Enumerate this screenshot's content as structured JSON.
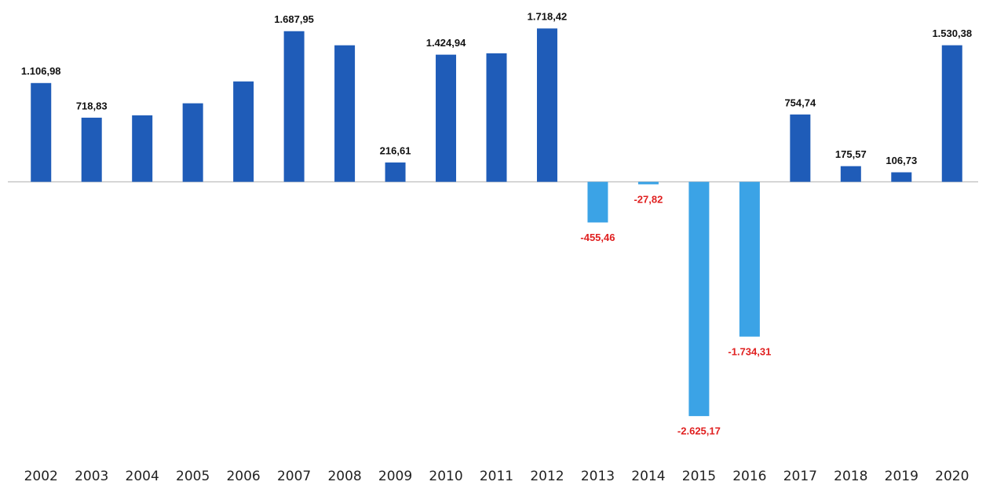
{
  "chart_data": {
    "type": "bar",
    "categories": [
      "2002",
      "2003",
      "2004",
      "2005",
      "2006",
      "2007",
      "2008",
      "2009",
      "2010",
      "2011",
      "2012",
      "2013",
      "2014",
      "2015",
      "2016",
      "2017",
      "2018",
      "2019",
      "2020"
    ],
    "values": [
      1106.98,
      718.83,
      745,
      880,
      1125,
      1687.95,
      1530,
      216.61,
      1424.94,
      1440,
      1718.42,
      -455.46,
      -27.82,
      -2625.17,
      -1734.31,
      754.74,
      175.57,
      106.73,
      1530.38
    ],
    "value_labels": [
      "1.106,98",
      "718,83",
      null,
      null,
      null,
      "1.687,95",
      null,
      "216,61",
      "1.424,94",
      null,
      "1.718,42",
      "-455,46",
      "-27,82",
      "-2.625,17",
      "-1.734,31",
      "754,74",
      "175,57",
      "106,73",
      "1.530,38"
    ],
    "color": "#1f5cb8",
    "negative_color": "#3ba3e6",
    "label_color": "#111111",
    "negative_label_color": "#e02020",
    "ylim": [
      -2800,
      1800
    ]
  }
}
